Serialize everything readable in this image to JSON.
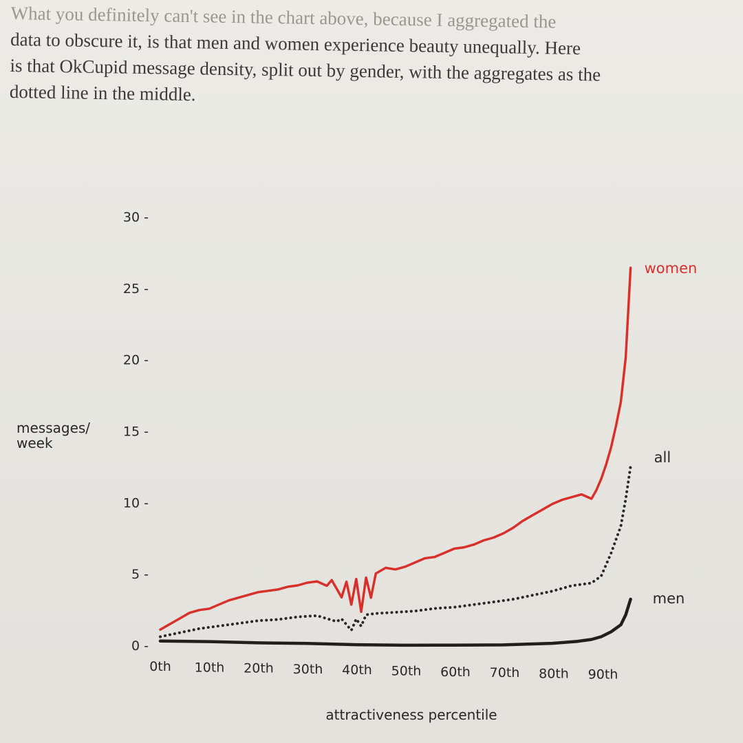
{
  "prose": {
    "lines": [
      "What you definitely can't see in the chart above, because I aggregated the",
      "data to obscure it, is that men and women experience beauty unequally. Here",
      "is that OkCupid message density, split out by gender, with the aggregates as the",
      "dotted line in the middle."
    ]
  },
  "chart_data": {
    "type": "line",
    "title": "",
    "xlabel": "attractiveness percentile",
    "ylabel": "messages/\nweek",
    "ylabel_lines": [
      "messages/",
      "week"
    ],
    "xlim": [
      0,
      99
    ],
    "ylim": [
      0,
      30
    ],
    "x_ticks": [
      0,
      10,
      20,
      30,
      40,
      50,
      60,
      70,
      80,
      90
    ],
    "x_tick_labels": [
      "0th",
      "10th",
      "20th",
      "30th",
      "40th",
      "50th",
      "60th",
      "70th",
      "80th",
      "90th"
    ],
    "y_ticks": [
      0,
      5,
      10,
      15,
      20,
      25,
      30
    ],
    "y_tick_labels": [
      "0 -",
      "5 -",
      "10 -",
      "15 -",
      "20 -",
      "25 -",
      "30 -"
    ],
    "grid": false,
    "legend": "direct labels at line ends",
    "series": [
      {
        "name": "women",
        "color": "#d8312c",
        "style": "solid",
        "points": [
          [
            0,
            1.1
          ],
          [
            2,
            1.5
          ],
          [
            4,
            1.9
          ],
          [
            6,
            2.3
          ],
          [
            8,
            2.5
          ],
          [
            10,
            2.6
          ],
          [
            12,
            2.9
          ],
          [
            14,
            3.2
          ],
          [
            16,
            3.4
          ],
          [
            18,
            3.6
          ],
          [
            20,
            3.8
          ],
          [
            22,
            3.9
          ],
          [
            24,
            4.0
          ],
          [
            26,
            4.2
          ],
          [
            28,
            4.3
          ],
          [
            30,
            4.5
          ],
          [
            32,
            4.6
          ],
          [
            34,
            4.3
          ],
          [
            35,
            4.7
          ],
          [
            36,
            4.1
          ],
          [
            37,
            3.5
          ],
          [
            38,
            4.6
          ],
          [
            39,
            3.0
          ],
          [
            40,
            4.8
          ],
          [
            41,
            2.5
          ],
          [
            42,
            4.9
          ],
          [
            43,
            3.5
          ],
          [
            44,
            5.2
          ],
          [
            46,
            5.6
          ],
          [
            48,
            5.5
          ],
          [
            50,
            5.7
          ],
          [
            52,
            6.0
          ],
          [
            54,
            6.3
          ],
          [
            56,
            6.4
          ],
          [
            58,
            6.7
          ],
          [
            60,
            7.0
          ],
          [
            62,
            7.1
          ],
          [
            64,
            7.3
          ],
          [
            66,
            7.6
          ],
          [
            68,
            7.8
          ],
          [
            70,
            8.1
          ],
          [
            72,
            8.5
          ],
          [
            74,
            9.0
          ],
          [
            76,
            9.4
          ],
          [
            78,
            9.8
          ],
          [
            80,
            10.2
          ],
          [
            82,
            10.5
          ],
          [
            84,
            10.7
          ],
          [
            86,
            10.9
          ],
          [
            88,
            10.6
          ],
          [
            89,
            11.2
          ],
          [
            90,
            12.0
          ],
          [
            91,
            13.0
          ],
          [
            92,
            14.2
          ],
          [
            93,
            15.7
          ],
          [
            94,
            17.4
          ],
          [
            95,
            20.5
          ],
          [
            96,
            26.8
          ]
        ]
      },
      {
        "name": "all",
        "color": "#2a2826",
        "style": "dotted",
        "points": [
          [
            0,
            0.6
          ],
          [
            4,
            0.9
          ],
          [
            8,
            1.2
          ],
          [
            12,
            1.4
          ],
          [
            16,
            1.6
          ],
          [
            20,
            1.8
          ],
          [
            24,
            1.9
          ],
          [
            28,
            2.1
          ],
          [
            32,
            2.2
          ],
          [
            34,
            2.0
          ],
          [
            36,
            1.8
          ],
          [
            37,
            2.0
          ],
          [
            38,
            1.6
          ],
          [
            39,
            1.2
          ],
          [
            40,
            2.0
          ],
          [
            41,
            1.5
          ],
          [
            42,
            2.3
          ],
          [
            44,
            2.4
          ],
          [
            48,
            2.5
          ],
          [
            52,
            2.6
          ],
          [
            56,
            2.8
          ],
          [
            60,
            2.9
          ],
          [
            64,
            3.1
          ],
          [
            68,
            3.3
          ],
          [
            72,
            3.5
          ],
          [
            76,
            3.8
          ],
          [
            80,
            4.1
          ],
          [
            84,
            4.5
          ],
          [
            88,
            4.7
          ],
          [
            90,
            5.2
          ],
          [
            92,
            6.8
          ],
          [
            94,
            8.7
          ],
          [
            95,
            10.6
          ],
          [
            96,
            12.9
          ]
        ]
      },
      {
        "name": "men",
        "color": "#211e1c",
        "style": "solid",
        "points": [
          [
            0,
            0.3
          ],
          [
            10,
            0.3
          ],
          [
            20,
            0.25
          ],
          [
            30,
            0.25
          ],
          [
            40,
            0.2
          ],
          [
            50,
            0.2
          ],
          [
            60,
            0.25
          ],
          [
            70,
            0.3
          ],
          [
            80,
            0.45
          ],
          [
            85,
            0.6
          ],
          [
            88,
            0.75
          ],
          [
            90,
            0.95
          ],
          [
            92,
            1.3
          ],
          [
            94,
            1.8
          ],
          [
            95,
            2.5
          ],
          [
            96,
            3.6
          ]
        ]
      }
    ]
  }
}
